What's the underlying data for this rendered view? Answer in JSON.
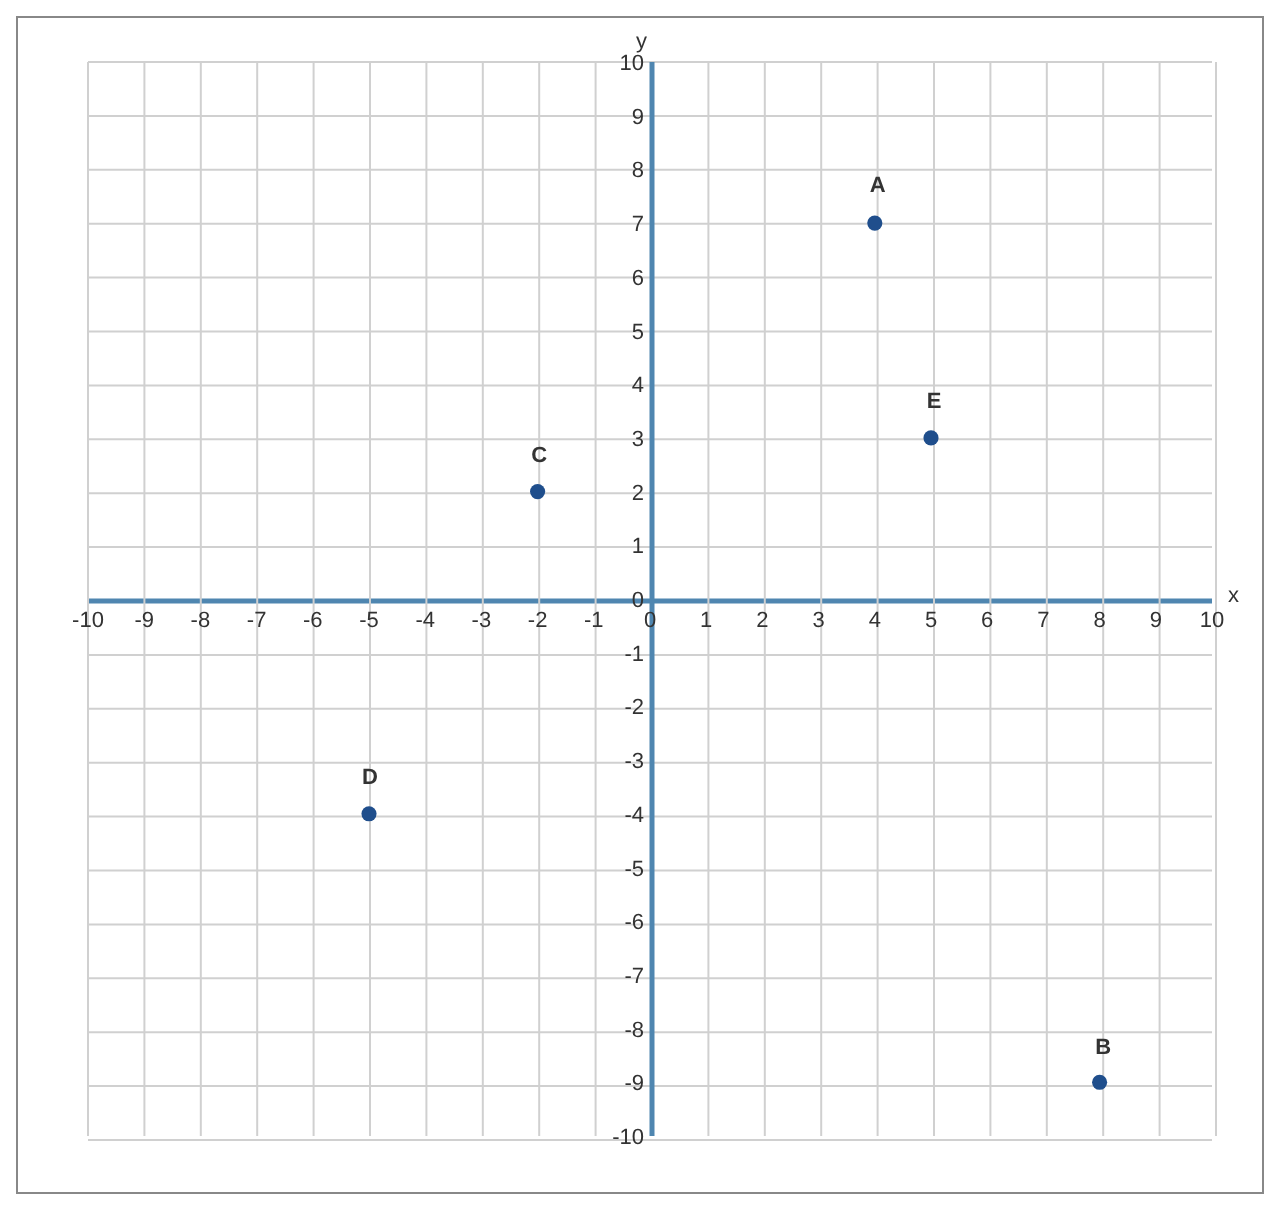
{
  "chart_data": {
    "type": "scatter",
    "xlabel": "x",
    "ylabel": "y",
    "x": [
      4,
      8,
      -2,
      -5,
      5
    ],
    "values": [
      7,
      -9,
      2,
      -4,
      3
    ],
    "color": "#1f4e8c",
    "marker": "circle",
    "grid": true,
    "xlim": [
      -10,
      10
    ],
    "ylim": [
      -10,
      10
    ],
    "xticks": [
      -10,
      -9,
      -8,
      -7,
      -6,
      -5,
      -4,
      -3,
      -2,
      -1,
      0,
      1,
      2,
      3,
      4,
      5,
      6,
      7,
      8,
      9,
      10
    ],
    "yticks": [
      -10,
      -9,
      -8,
      -7,
      -6,
      -5,
      -4,
      -3,
      -2,
      -1,
      0,
      1,
      2,
      3,
      4,
      5,
      6,
      7,
      8,
      9,
      10
    ],
    "annotations": [
      {
        "text": "A",
        "x": 4,
        "y": 7
      },
      {
        "text": "B",
        "x": 8,
        "y": -9
      },
      {
        "text": "C",
        "x": -2,
        "y": 2
      },
      {
        "text": "D",
        "x": -5,
        "y": -4
      },
      {
        "text": "E",
        "x": 5,
        "y": 3
      }
    ]
  }
}
